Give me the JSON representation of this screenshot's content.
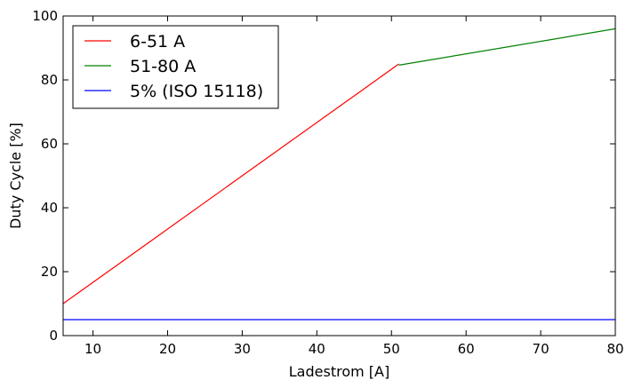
{
  "chart_data": {
    "type": "line",
    "title": "",
    "xlabel": "Ladestrom [A]",
    "ylabel": "Duty Cycle [%]",
    "xlim": [
      6,
      80
    ],
    "ylim": [
      0,
      100
    ],
    "xticks": [
      10,
      20,
      30,
      40,
      50,
      60,
      70,
      80
    ],
    "yticks": [
      0,
      20,
      40,
      60,
      80,
      100
    ],
    "grid": false,
    "legend_position": "top-left",
    "series": [
      {
        "name": "6-51 A",
        "color": "#ff0000",
        "x": [
          6,
          51
        ],
        "y": [
          10,
          85
        ]
      },
      {
        "name": "51-80 A",
        "color": "#008000",
        "x": [
          51,
          80
        ],
        "y": [
          84.6,
          96
        ]
      },
      {
        "name": "5% (ISO 15118)",
        "color": "#0000ff",
        "x": [
          6,
          80
        ],
        "y": [
          5,
          5
        ]
      }
    ]
  }
}
